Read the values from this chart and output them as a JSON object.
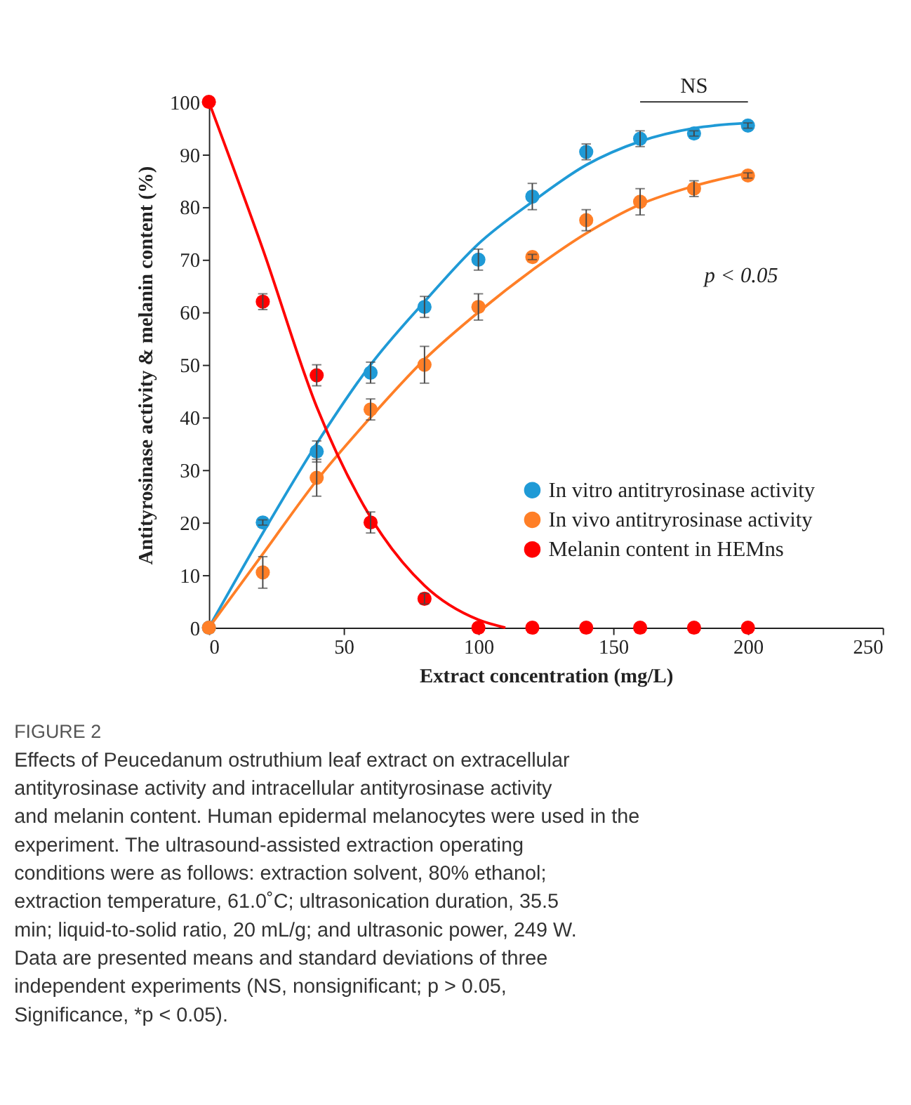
{
  "chart_data": {
    "type": "scatter",
    "xlabel": "Extract concentration (mg/L)",
    "ylabel": "Antityrosinase activity & melanin content (%)",
    "xlim": [
      0,
      250
    ],
    "xticks": [
      0,
      50,
      100,
      150,
      200,
      250
    ],
    "ylim": [
      0,
      100
    ],
    "yticks": [
      0,
      10,
      20,
      30,
      40,
      50,
      60,
      70,
      80,
      90,
      100
    ],
    "grid": false,
    "legend": "bottom right",
    "marker": "circle",
    "series": [
      {
        "name": "In vitro antitryrosinase activity",
        "color": "#1f9ad6",
        "x": [
          0,
          20,
          40,
          60,
          80,
          100,
          120,
          140,
          160,
          180,
          200
        ],
        "values": [
          0,
          20,
          33.5,
          48.5,
          61,
          70,
          82,
          90.5,
          93,
          94,
          95.5
        ],
        "errors": [
          null,
          0.5,
          2,
          2,
          2,
          2,
          2.5,
          1.5,
          1.5,
          0.5,
          0.5
        ]
      },
      {
        "name": "In vivo antitryrosinase activity",
        "color": "#ff7f27",
        "x": [
          0,
          20,
          40,
          60,
          80,
          100,
          120,
          140,
          160,
          180,
          200
        ],
        "values": [
          0,
          10.5,
          28.5,
          41.5,
          50,
          61,
          70.5,
          77.5,
          81,
          83.5,
          86
        ],
        "errors": [
          null,
          3,
          3.5,
          2,
          3.5,
          2.5,
          0.5,
          2,
          2.5,
          1.5,
          0.5
        ]
      },
      {
        "name": "Melanin content in HEMns",
        "color": "#ff0000",
        "x": [
          0,
          20,
          40,
          60,
          80,
          100,
          120,
          140,
          160,
          180,
          200
        ],
        "values": [
          100,
          62,
          48,
          20,
          5.5,
          0,
          0,
          0,
          0,
          0,
          0
        ],
        "errors": [
          null,
          1.5,
          2,
          2,
          1,
          null,
          null,
          null,
          null,
          null,
          null
        ]
      },
      {
        "type": "line",
        "color": "#1f9ad6",
        "line_style": "solid",
        "marker": "none",
        "x": [
          0,
          20,
          40,
          60,
          80,
          100,
          120,
          140,
          160,
          180,
          200
        ],
        "values": [
          0,
          18,
          35,
          50,
          62,
          73,
          81,
          88,
          92.5,
          95,
          96
        ]
      },
      {
        "type": "line",
        "color": "#ff7f27",
        "line_style": "solid",
        "marker": "none",
        "x": [
          0,
          20,
          40,
          60,
          80,
          100,
          120,
          140,
          160,
          180,
          200
        ],
        "values": [
          0,
          14,
          28,
          40,
          51,
          60,
          68,
          75,
          80.5,
          84,
          86.5
        ]
      },
      {
        "type": "line",
        "color": "#ff0000",
        "line_style": "solid",
        "marker": "none",
        "x": [
          0,
          20,
          40,
          60,
          80,
          100,
          110
        ],
        "values": [
          100,
          72,
          42,
          21,
          8,
          1.5,
          0
        ]
      }
    ],
    "annotations": [
      "NS",
      "p < 0.05",
      "FIGURE 2",
      "Effects of Peucedanum ostruthium leaf extract on extracellular antityrosinase activity and intracellular antityrosinase activity and melanin content. Human epidermal melanocytes were used in the experiment. The ultrasound-assisted extraction operating conditions were as follows: extraction solvent, 80% ethanol; extraction temperature, 61.0˚C; ultrasonication duration, 35.5 min; liquid-to-solid ratio, 20 mL/g; and ultrasonic power, 249 W. Data are presented means and standard deviations of three independent experiments (NS, nonsignificant; p > 0.05, Significance, *p < 0.05)."
    ]
  }
}
